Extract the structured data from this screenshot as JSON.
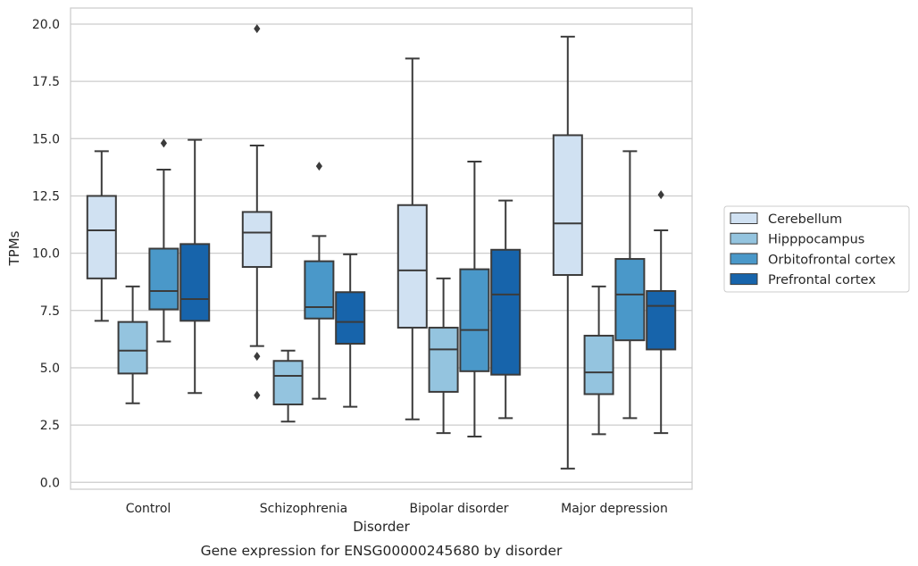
{
  "chart_data": {
    "type": "boxplot",
    "caption": "Gene expression for ENSG00000245680 by disorder",
    "xlabel": "Disorder",
    "ylabel": "TPMs",
    "ylim": [
      -0.3,
      20.7
    ],
    "yticks": [
      0.0,
      2.5,
      5.0,
      7.5,
      10.0,
      12.5,
      15.0,
      17.5,
      20.0
    ],
    "ytick_labels": [
      "0.0",
      "2.5",
      "5.0",
      "7.5",
      "10.0",
      "12.5",
      "15.0",
      "17.5",
      "20.0"
    ],
    "grid": "horizontal",
    "legend_position": "right",
    "categories": [
      "Control",
      "Schizophrenia",
      "Bipolar disorder",
      "Major depression"
    ],
    "series": [
      {
        "name": "Cerebellum",
        "color": "#d0e1f2",
        "boxes": [
          {
            "whislo": 7.05,
            "q1": 8.9,
            "med": 11.0,
            "q3": 12.5,
            "whishi": 14.45,
            "fliers": []
          },
          {
            "whislo": 5.95,
            "q1": 9.4,
            "med": 10.9,
            "q3": 11.8,
            "whishi": 14.7,
            "fliers": [
              5.5,
              3.8,
              19.8
            ]
          },
          {
            "whislo": 2.75,
            "q1": 6.75,
            "med": 9.25,
            "q3": 12.1,
            "whishi": 18.5,
            "fliers": []
          },
          {
            "whislo": 0.6,
            "q1": 9.05,
            "med": 11.3,
            "q3": 15.15,
            "whishi": 19.45,
            "fliers": []
          }
        ]
      },
      {
        "name": "Hipppocampus",
        "color": "#94c4df",
        "boxes": [
          {
            "whislo": 3.45,
            "q1": 4.75,
            "med": 5.75,
            "q3": 7.0,
            "whishi": 8.55,
            "fliers": []
          },
          {
            "whislo": 2.65,
            "q1": 3.4,
            "med": 4.65,
            "q3": 5.3,
            "whishi": 5.75,
            "fliers": []
          },
          {
            "whislo": 2.15,
            "q1": 3.95,
            "med": 5.8,
            "q3": 6.75,
            "whishi": 8.9,
            "fliers": []
          },
          {
            "whislo": 2.1,
            "q1": 3.85,
            "med": 4.8,
            "q3": 6.4,
            "whishi": 8.55,
            "fliers": []
          }
        ]
      },
      {
        "name": "Orbitofrontal cortex",
        "color": "#4a98c9",
        "boxes": [
          {
            "whislo": 6.15,
            "q1": 7.55,
            "med": 8.35,
            "q3": 10.2,
            "whishi": 13.65,
            "fliers": [
              14.8
            ]
          },
          {
            "whislo": 3.65,
            "q1": 7.15,
            "med": 7.65,
            "q3": 9.65,
            "whishi": 10.75,
            "fliers": [
              13.8
            ]
          },
          {
            "whislo": 2.0,
            "q1": 4.85,
            "med": 6.65,
            "q3": 9.3,
            "whishi": 14.0,
            "fliers": []
          },
          {
            "whislo": 2.8,
            "q1": 6.2,
            "med": 8.2,
            "q3": 9.75,
            "whishi": 14.45,
            "fliers": []
          }
        ]
      },
      {
        "name": "Prefrontal cortex",
        "color": "#1764ab",
        "boxes": [
          {
            "whislo": 3.9,
            "q1": 7.05,
            "med": 8.0,
            "q3": 10.4,
            "whishi": 14.95,
            "fliers": []
          },
          {
            "whislo": 3.3,
            "q1": 6.05,
            "med": 7.0,
            "q3": 8.3,
            "whishi": 9.95,
            "fliers": []
          },
          {
            "whislo": 2.8,
            "q1": 4.7,
            "med": 8.2,
            "q3": 10.15,
            "whishi": 12.3,
            "fliers": []
          },
          {
            "whislo": 2.15,
            "q1": 5.8,
            "med": 7.7,
            "q3": 8.35,
            "whishi": 11.0,
            "fliers": [
              12.55
            ]
          }
        ]
      }
    ]
  }
}
